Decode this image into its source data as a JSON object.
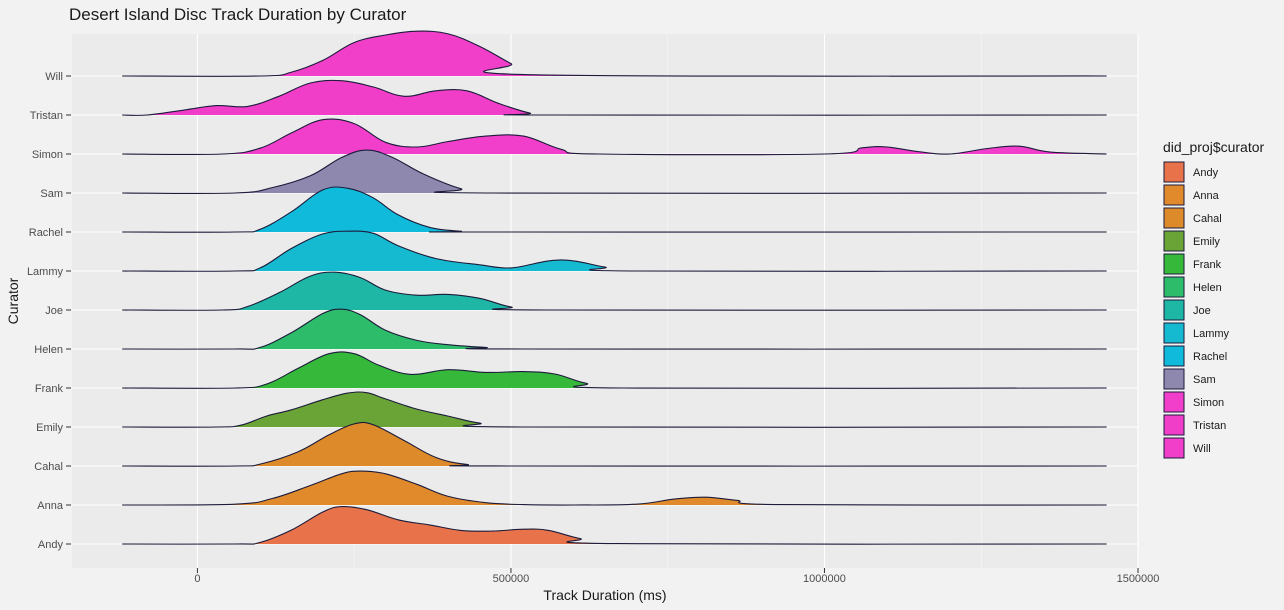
{
  "chart_data": {
    "type": "ridgeline",
    "title": "Desert Island Disc Track Duration by Curator",
    "xlabel": "Track Duration (ms)",
    "ylabel": "Curator",
    "xlim": [
      -200000,
      1500000
    ],
    "x_ticks": [
      0,
      500000,
      1000000,
      1500000
    ],
    "x_tick_labels": [
      "0",
      "500000",
      "1000000",
      "1500000"
    ],
    "grid": true,
    "legend": {
      "title": "did_proj$curator",
      "position": "right"
    },
    "series": [
      {
        "name": "Andy",
        "color": "#e8734a",
        "x": [
          -120000,
          60000,
          100000,
          150000,
          200000,
          230000,
          270000,
          320000,
          370000,
          420000,
          470000,
          520000,
          560000,
          610000,
          670000,
          1450000
        ],
        "y": [
          0,
          0,
          0.04,
          0.36,
          0.82,
          0.96,
          0.88,
          0.62,
          0.49,
          0.35,
          0.33,
          0.38,
          0.35,
          0.14,
          0.01,
          0
        ]
      },
      {
        "name": "Anna",
        "color": "#e08a2c",
        "x": [
          -120000,
          60000,
          120000,
          180000,
          230000,
          260000,
          300000,
          350000,
          400000,
          460000,
          520000,
          600000,
          700000,
          760000,
          810000,
          860000,
          930000,
          1450000
        ],
        "y": [
          0,
          0.02,
          0.17,
          0.5,
          0.8,
          0.87,
          0.8,
          0.53,
          0.22,
          0.06,
          0.01,
          0,
          0.02,
          0.15,
          0.2,
          0.12,
          0.01,
          0
        ]
      },
      {
        "name": "Cahal",
        "color": "#dd8a2b",
        "x": [
          -120000,
          60000,
          100000,
          160000,
          210000,
          250000,
          280000,
          330000,
          380000,
          430000,
          500000,
          1450000
        ],
        "y": [
          0,
          0,
          0.05,
          0.36,
          0.8,
          1.08,
          1.06,
          0.65,
          0.22,
          0.04,
          0,
          0
        ]
      },
      {
        "name": "Emily",
        "color": "#6aa436",
        "x": [
          -120000,
          30000,
          70000,
          110000,
          150000,
          200000,
          240000,
          270000,
          300000,
          350000,
          400000,
          450000,
          520000,
          1450000
        ],
        "y": [
          0,
          0,
          0.05,
          0.28,
          0.44,
          0.7,
          0.87,
          0.88,
          0.72,
          0.46,
          0.28,
          0.1,
          0,
          0
        ]
      },
      {
        "name": "Frank",
        "color": "#36b83b",
        "x": [
          -120000,
          60000,
          110000,
          160000,
          210000,
          250000,
          290000,
          340000,
          400000,
          460000,
          520000,
          570000,
          620000,
          680000,
          1450000
        ],
        "y": [
          0,
          0,
          0.1,
          0.5,
          0.88,
          0.88,
          0.58,
          0.35,
          0.47,
          0.4,
          0.42,
          0.36,
          0.12,
          0,
          0
        ]
      },
      {
        "name": "Helen",
        "color": "#2dbd6a",
        "x": [
          -120000,
          60000,
          100000,
          150000,
          200000,
          230000,
          260000,
          300000,
          350000,
          400000,
          460000,
          520000,
          1450000
        ],
        "y": [
          0,
          0,
          0.04,
          0.42,
          0.91,
          1.02,
          0.88,
          0.48,
          0.22,
          0.11,
          0.04,
          0,
          0
        ]
      },
      {
        "name": "Joe",
        "color": "#1eb6a5",
        "x": [
          -120000,
          40000,
          80000,
          130000,
          180000,
          220000,
          260000,
          300000,
          350000,
          400000,
          450000,
          500000,
          560000,
          1450000
        ],
        "y": [
          0,
          0,
          0.09,
          0.44,
          0.87,
          0.97,
          0.83,
          0.51,
          0.38,
          0.4,
          0.3,
          0.08,
          0,
          0
        ]
      },
      {
        "name": "Lammy",
        "color": "#15b9d0",
        "x": [
          -120000,
          60000,
          100000,
          150000,
          200000,
          240000,
          280000,
          320000,
          380000,
          450000,
          500000,
          560000,
          600000,
          650000,
          700000,
          1450000
        ],
        "y": [
          0,
          0,
          0.08,
          0.58,
          0.95,
          1.02,
          0.97,
          0.65,
          0.32,
          0.16,
          0.08,
          0.26,
          0.26,
          0.1,
          0,
          0
        ]
      },
      {
        "name": "Rachel",
        "color": "#0fbadb",
        "x": [
          -120000,
          60000,
          100000,
          150000,
          200000,
          240000,
          280000,
          320000,
          370000,
          420000,
          460000,
          1450000
        ],
        "y": [
          0,
          0,
          0.07,
          0.52,
          1.08,
          1.12,
          0.88,
          0.44,
          0.12,
          0.02,
          0,
          0
        ]
      },
      {
        "name": "Sam",
        "color": "#8e87ae",
        "x": [
          -120000,
          60000,
          120000,
          180000,
          230000,
          270000,
          310000,
          360000,
          420000,
          470000,
          1450000
        ],
        "y": [
          0,
          0,
          0.14,
          0.44,
          0.91,
          1.1,
          0.92,
          0.49,
          0.11,
          0,
          0
        ]
      },
      {
        "name": "Simon",
        "color": "#f23fcb",
        "x": [
          -120000,
          40000,
          100000,
          150000,
          200000,
          250000,
          300000,
          350000,
          400000,
          460000,
          520000,
          580000,
          640000,
          1000000,
          1060000,
          1100000,
          1150000,
          1200000,
          1260000,
          1310000,
          1360000,
          1450000
        ],
        "y": [
          0,
          0,
          0.15,
          0.54,
          0.88,
          0.78,
          0.3,
          0.18,
          0.32,
          0.46,
          0.46,
          0.12,
          0,
          0,
          0.16,
          0.18,
          0.06,
          0,
          0.14,
          0.2,
          0.05,
          0
        ]
      },
      {
        "name": "Tristan",
        "color": "#f03ec9",
        "x": [
          -120000,
          -80000,
          -20000,
          30000,
          80000,
          130000,
          180000,
          230000,
          280000,
          330000,
          380000,
          430000,
          480000,
          530000,
          570000,
          1450000
        ],
        "y": [
          0,
          0,
          0.13,
          0.24,
          0.22,
          0.48,
          0.82,
          0.88,
          0.72,
          0.48,
          0.62,
          0.62,
          0.3,
          0.05,
          0,
          0
        ]
      },
      {
        "name": "Will",
        "color": "#f13fca",
        "x": [
          -120000,
          100000,
          150000,
          200000,
          250000,
          300000,
          350000,
          400000,
          450000,
          500000,
          540000,
          1450000
        ],
        "y": [
          0,
          0,
          0.1,
          0.4,
          0.86,
          1.05,
          1.15,
          1.08,
          0.76,
          0.32,
          0.03,
          0
        ]
      }
    ]
  }
}
